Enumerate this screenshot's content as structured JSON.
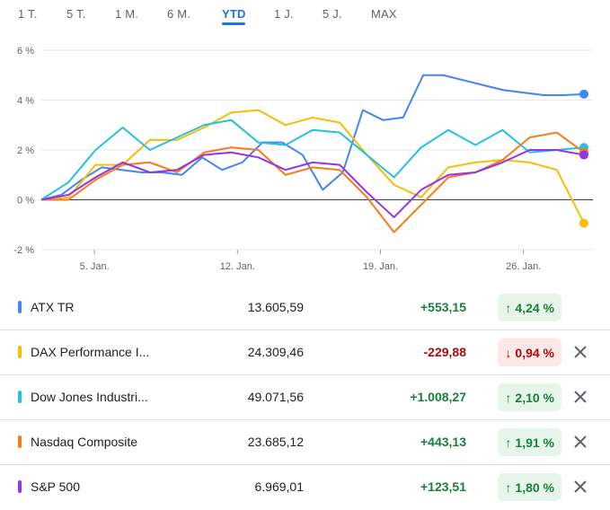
{
  "tabs": [
    {
      "label": "1 T.",
      "active": false
    },
    {
      "label": "5 T.",
      "active": false
    },
    {
      "label": "1 M.",
      "active": false
    },
    {
      "label": "6 M.",
      "active": false
    },
    {
      "label": "YTD",
      "active": true
    },
    {
      "label": "1 J.",
      "active": false
    },
    {
      "label": "5 J.",
      "active": false
    },
    {
      "label": "MAX",
      "active": false
    }
  ],
  "colors": {
    "up_text": "#188038",
    "up_bg": "#e6f4ea",
    "down_text": "#a50e0e",
    "down_bg": "#fce8e6"
  },
  "chart_data": {
    "type": "line",
    "y_ticks": [
      "6 %",
      "4 %",
      "2 %",
      "0 %",
      "-2 %"
    ],
    "y_tick_values": [
      6,
      4,
      2,
      0,
      -2
    ],
    "ylim": [
      -2,
      6
    ],
    "x_tick_labels": [
      "5. Jan.",
      "12. Jan.",
      "19. Jan.",
      "26. Jan."
    ],
    "x_tick_index": [
      2.6,
      9.6,
      16.6,
      23.6
    ],
    "x_count": 28,
    "grid": true,
    "series": [
      {
        "name": "ATX TR",
        "color": "#4285f4",
        "values": [
          0,
          0.2,
          0.8,
          1.3,
          1.2,
          1.1,
          1.1,
          1.0,
          1.7,
          1.2,
          1.5,
          2.3,
          2.3,
          1.8,
          0.4,
          1.1,
          3.6,
          3.2,
          3.3,
          5.0,
          5.0,
          4.8,
          4.6,
          4.4,
          4.3,
          4.2,
          4.2,
          4.24
        ]
      },
      {
        "name": "DAX Performance I...",
        "color": "#fbbc04",
        "values": [
          0,
          0.1,
          1.4,
          1.4,
          2.4,
          2.4,
          2.9,
          3.5,
          3.6,
          3.0,
          3.3,
          3.1,
          1.8,
          0.6,
          0.1,
          1.3,
          1.5,
          1.6,
          1.5,
          1.2,
          -0.94
        ]
      },
      {
        "name": "Dow Jones Industri...",
        "color": "#24c1e0",
        "values": [
          0,
          0.7,
          2.0,
          2.9,
          2.0,
          2.5,
          3.0,
          3.2,
          2.3,
          2.2,
          2.8,
          2.7,
          1.8,
          0.9,
          2.1,
          2.8,
          2.2,
          2.8,
          1.9,
          2.0,
          2.1
        ]
      },
      {
        "name": "Nasdaq Composite",
        "color": "#fa7b17",
        "values": [
          0,
          0,
          0.8,
          1.4,
          1.5,
          1.1,
          1.9,
          2.1,
          2.0,
          1.0,
          1.3,
          1.2,
          0.1,
          -1.3,
          -0.2,
          0.9,
          1.1,
          1.6,
          2.5,
          2.7,
          1.91
        ]
      },
      {
        "name": "S&P 500",
        "color": "#9334e6",
        "values": [
          0,
          0.2,
          0.9,
          1.5,
          1.1,
          1.2,
          1.8,
          1.9,
          1.7,
          1.2,
          1.5,
          1.4,
          0.3,
          -0.7,
          0.4,
          1.0,
          1.1,
          1.5,
          2.0,
          2.0,
          1.8
        ]
      }
    ]
  },
  "rows": [
    {
      "name": "ATX TR",
      "color": "#4285f4",
      "price": "13.605,59",
      "change": "+553,15",
      "pct": "4,24 %",
      "dir": "up",
      "removable": false
    },
    {
      "name": "DAX Performance I...",
      "color": "#fbbc04",
      "price": "24.309,46",
      "change": "-229,88",
      "pct": "0,94 %",
      "dir": "down",
      "removable": true
    },
    {
      "name": "Dow Jones Industri...",
      "color": "#24c1e0",
      "price": "49.071,56",
      "change": "+1.008,27",
      "pct": "2,10 %",
      "dir": "up",
      "removable": true
    },
    {
      "name": "Nasdaq Composite",
      "color": "#fa7b17",
      "price": "23.685,12",
      "change": "+443,13",
      "pct": "1,91 %",
      "dir": "up",
      "removable": true
    },
    {
      "name": "S&P 500",
      "color": "#9334e6",
      "price": "6.969,01",
      "change": "+123,51",
      "pct": "1,80 %",
      "dir": "up",
      "removable": true
    }
  ]
}
